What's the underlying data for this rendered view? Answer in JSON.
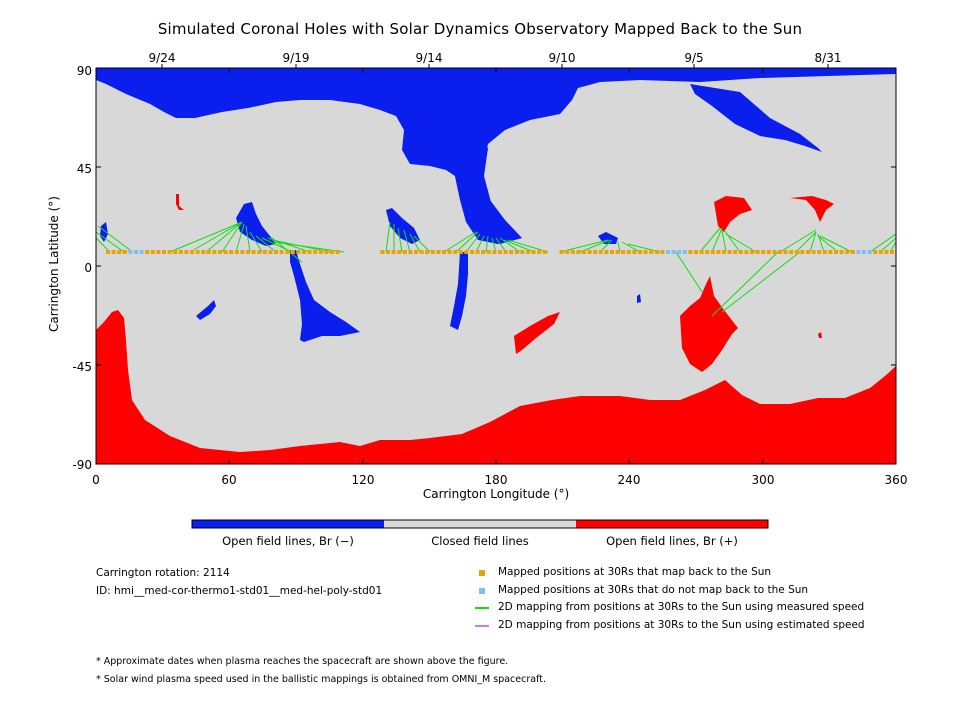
{
  "title": "Simulated Coronal Holes with Solar Dynamics Observatory Mapped Back to the Sun",
  "axes": {
    "xlabel": "Carrington Longitude (°)",
    "ylabel": "Carrington Latitude (°)",
    "xlim": [
      0,
      360
    ],
    "ylim": [
      -90,
      90
    ],
    "x_ticks": [
      "0",
      "60",
      "120",
      "180",
      "240",
      "300",
      "360"
    ],
    "y_ticks": [
      "90",
      "45",
      "0",
      "-45",
      "-90"
    ],
    "top_dates": [
      "9/24",
      "9/19",
      "9/14",
      "9/10",
      "9/5",
      "8/31"
    ]
  },
  "colors": {
    "open_negative": "#0a1eee",
    "closed": "#d8d8d8",
    "open_positive": "#ff0000",
    "mapped_back": "#e8a20a",
    "not_mapped_back": "#80c0f0",
    "measured_speed": "#11dd11",
    "estimated_speed": "#c080f0"
  },
  "colorbar": {
    "labels": [
      "Open field lines, Br (−)",
      "Closed field lines",
      "Open field lines, Br (+)"
    ]
  },
  "info": {
    "carrington_rotation": "Carrington rotation: 2114",
    "model_id": "ID: hmi__med-cor-thermo1-std01__med-hel-poly-std01"
  },
  "legend": [
    {
      "label": "Mapped positions at 30Rs that map back to the Sun",
      "icon": "square"
    },
    {
      "label": "Mapped positions at 30Rs that do not map back to the Sun",
      "icon": "square"
    },
    {
      "label": "2D mapping from positions at 30Rs to the Sun using measured speed",
      "icon": "line"
    },
    {
      "label": "2D mapping from positions at 30Rs to the Sun using estimated speed",
      "icon": "line"
    }
  ],
  "footnotes": [
    "* Approximate dates when plasma reaches the spacecraft are shown above the figure.",
    "* Solar wind plasma speed used in the ballistic mappings is obtained from OMNI_M spacecraft."
  ]
}
